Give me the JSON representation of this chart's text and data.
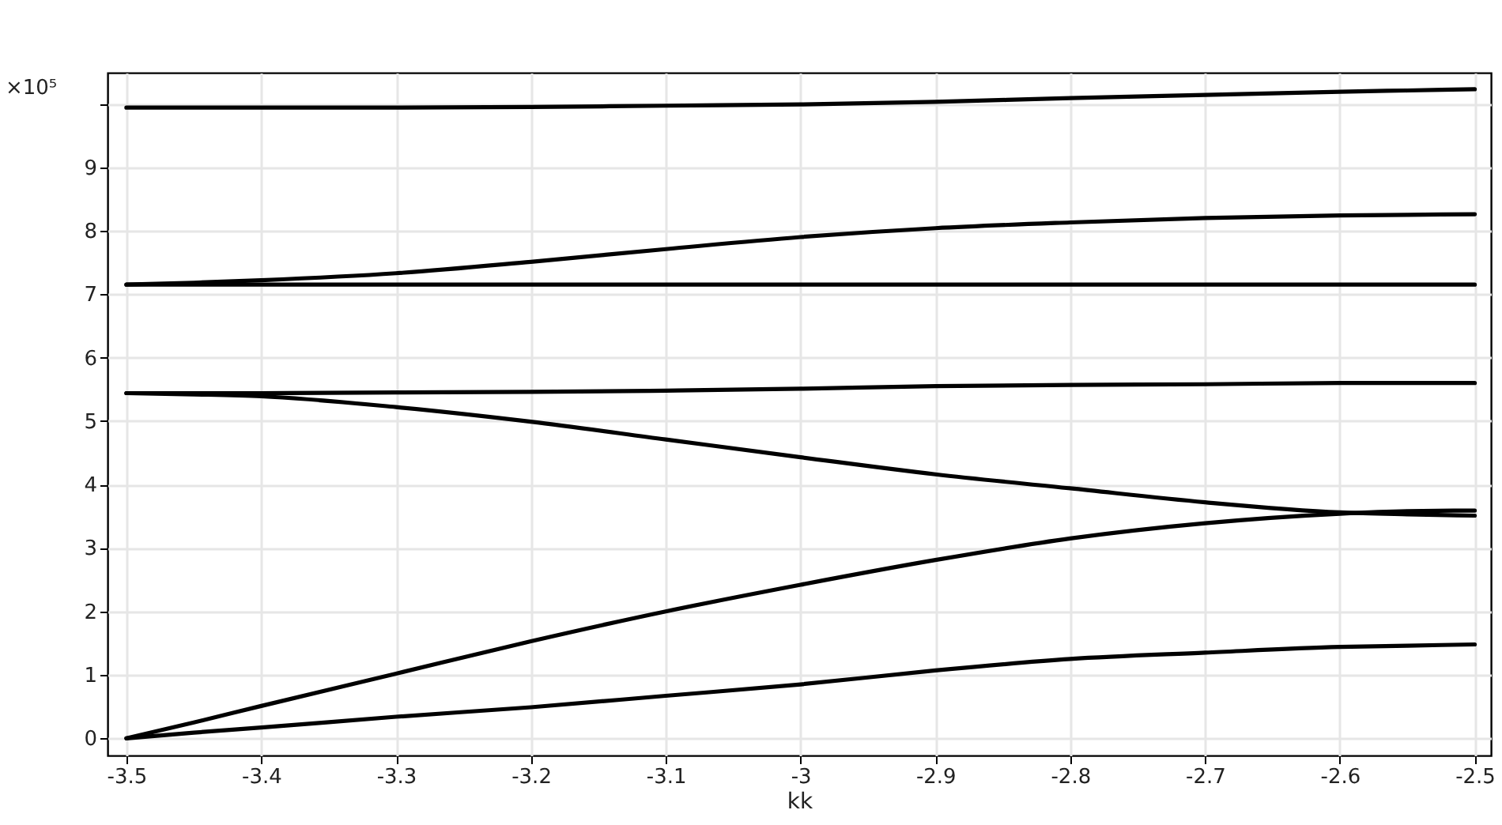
{
  "chart_data": {
    "type": "line",
    "xlabel": "kk",
    "ylabel": "×10⁵",
    "x": [
      -3.5,
      -3.45,
      -3.4,
      -3.3,
      -3.2,
      -3.1,
      -3.0,
      -2.9,
      -2.8,
      -2.7,
      -2.6,
      -2.55,
      -2.5
    ],
    "series": [
      {
        "color": "#000000",
        "values": [
          9.94,
          9.94,
          9.94,
          9.94,
          9.95,
          9.97,
          9.99,
          10.03,
          10.09,
          10.14,
          10.19,
          10.21,
          10.23
        ]
      },
      {
        "color": "#000000",
        "values": [
          7.15,
          7.18,
          7.22,
          7.33,
          7.51,
          7.71,
          7.9,
          8.04,
          8.13,
          8.2,
          8.24,
          8.25,
          8.26
        ]
      },
      {
        "color": "#000000",
        "values": [
          7.15,
          7.15,
          7.15,
          7.15,
          7.15,
          7.15,
          7.15,
          7.15,
          7.15,
          7.15,
          7.15,
          7.15,
          7.15
        ]
      },
      {
        "color": "#000000",
        "values": [
          5.44,
          5.44,
          5.44,
          5.45,
          5.46,
          5.48,
          5.51,
          5.55,
          5.57,
          5.58,
          5.6,
          5.6,
          5.6
        ]
      },
      {
        "color": "#000000",
        "values": [
          5.44,
          5.42,
          5.39,
          5.22,
          4.99,
          4.71,
          4.43,
          4.16,
          3.94,
          3.72,
          3.56,
          3.53,
          3.51
        ]
      },
      {
        "color": "#000000",
        "values": [
          0,
          0.25,
          0.51,
          1.02,
          1.53,
          2.0,
          2.42,
          2.81,
          3.15,
          3.39,
          3.54,
          3.58,
          3.59
        ]
      },
      {
        "color": "#000000",
        "values": [
          0,
          0.09,
          0.17,
          0.34,
          0.49,
          0.67,
          0.85,
          1.07,
          1.25,
          1.35,
          1.44,
          1.46,
          1.48
        ]
      }
    ],
    "xlim": [
      -3.514,
      -2.488
    ],
    "ylim": [
      -0.27,
      10.49
    ],
    "xticks": [
      -3.5,
      -3.4,
      -3.3,
      -3.2,
      -3.1,
      -3,
      -2.9,
      -2.8,
      -2.7,
      -2.6,
      -2.5
    ],
    "yticks": [
      0,
      1,
      2,
      3,
      4,
      5,
      6,
      7,
      8,
      9,
      {
        "value": 10,
        "label": null
      }
    ],
    "grid": true,
    "legend": false
  }
}
